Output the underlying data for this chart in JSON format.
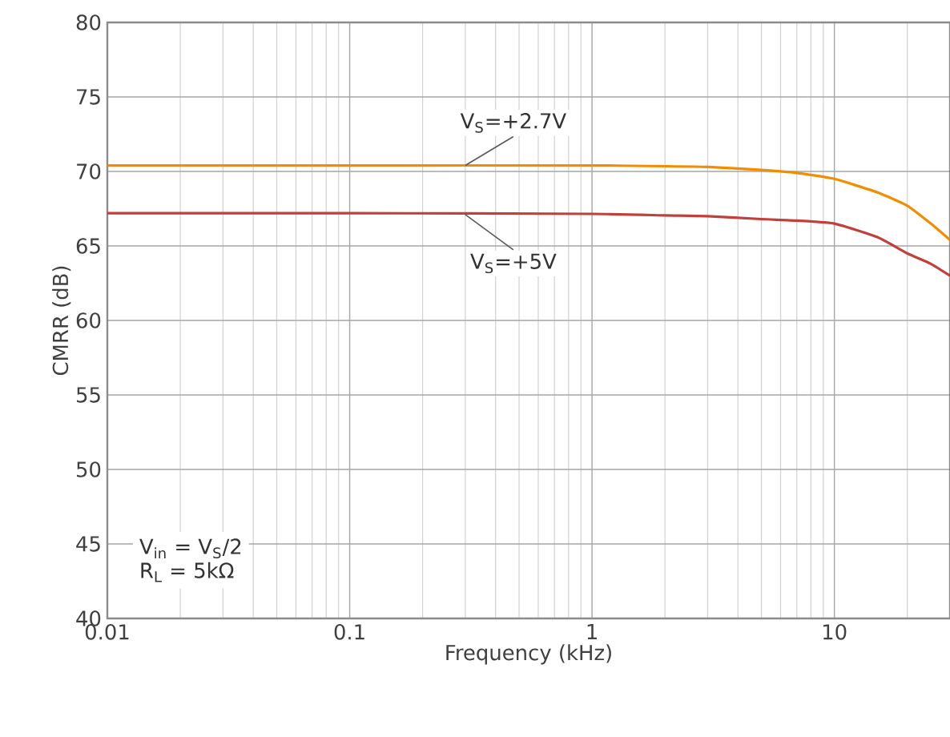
{
  "chart_data": {
    "type": "line",
    "xlabel": "Frequency (kHz)",
    "ylabel": "CMRR (dB)",
    "log": "x",
    "grid": true,
    "xlim": [
      0.01,
      30
    ],
    "ylim": [
      40,
      80
    ],
    "xticks": [
      0.01,
      0.1,
      1,
      10
    ],
    "yticks": [
      40,
      45,
      50,
      55,
      60,
      65,
      70,
      75,
      80
    ],
    "series": [
      {
        "color": "#f28c00",
        "x": [
          0.01,
          0.1,
          1,
          2,
          3,
          5,
          7,
          10,
          15,
          20,
          25,
          30
        ],
        "values": [
          70.4,
          70.4,
          70.4,
          70.35,
          70.3,
          70.1,
          69.9,
          69.5,
          68.6,
          67.7,
          66.5,
          65.4
        ]
      },
      {
        "color": "#c0403c",
        "x": [
          0.01,
          0.1,
          1,
          2,
          3,
          5,
          7,
          10,
          15,
          20,
          25,
          30
        ],
        "values": [
          67.2,
          67.2,
          67.15,
          67.05,
          67.0,
          66.8,
          66.7,
          66.5,
          65.6,
          64.5,
          63.8,
          63.0
        ]
      }
    ],
    "annotations": [
      {
        "text": "V$_{S}$=+2.7V",
        "x": 0.3,
        "y": 70.4
      },
      {
        "text": "V$_{S}$=+5V",
        "x": 0.3,
        "y": 67.1
      },
      "V$_{in}$ = V$_{S}$/2",
      "R$_{L}$ = 5kΩ"
    ]
  }
}
